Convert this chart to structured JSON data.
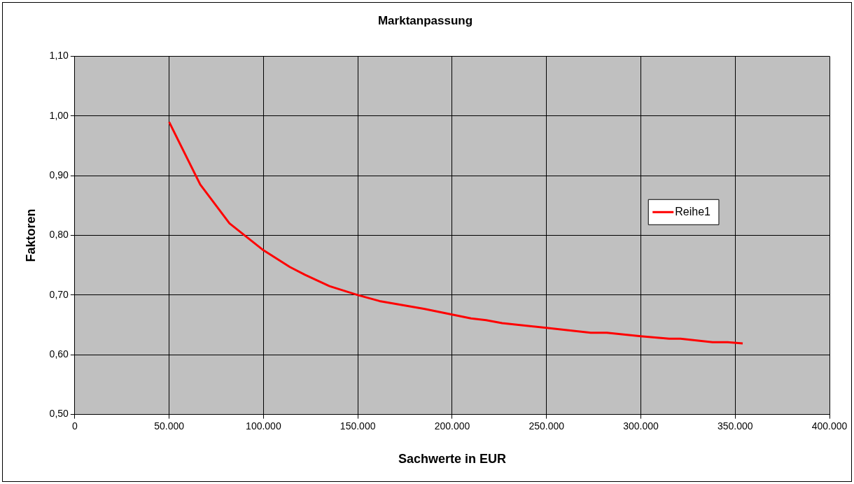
{
  "chart_data": {
    "type": "line",
    "title": "Marktanpassung",
    "xlabel": "Sachwerte in EUR",
    "ylabel": "Faktoren",
    "x": [
      50000,
      66500,
      82000,
      100000,
      114000,
      122000,
      135000,
      150000,
      161500,
      185000,
      210000,
      218000,
      226500,
      250000,
      273500,
      282000,
      300000,
      315000,
      321000,
      338000,
      346000,
      354000
    ],
    "series": [
      {
        "name": "Reihe1",
        "color": "#ff0000",
        "values": [
          0.99,
          0.885,
          0.82,
          0.775,
          0.747,
          0.734,
          0.715,
          0.7,
          0.69,
          0.677,
          0.661,
          0.658,
          0.653,
          0.645,
          0.637,
          0.637,
          0.631,
          0.627,
          0.627,
          0.621,
          0.621,
          0.619
        ]
      }
    ],
    "xlim": [
      0,
      400000
    ],
    "xticks": [
      {
        "value": 0,
        "label": "0"
      },
      {
        "value": 50000,
        "label": "50.000"
      },
      {
        "value": 100000,
        "label": "100.000"
      },
      {
        "value": 150000,
        "label": "150.000"
      },
      {
        "value": 200000,
        "label": "200.000"
      },
      {
        "value": 250000,
        "label": "250.000"
      },
      {
        "value": 300000,
        "label": "300.000"
      },
      {
        "value": 350000,
        "label": "350.000"
      },
      {
        "value": 400000,
        "label": "400.000"
      }
    ],
    "ylim": [
      0.5,
      1.1
    ],
    "yticks": [
      {
        "value": 0.5,
        "label": "0,50"
      },
      {
        "value": 0.6,
        "label": "0,60"
      },
      {
        "value": 0.7,
        "label": "0,70"
      },
      {
        "value": 0.8,
        "label": "0,80"
      },
      {
        "value": 0.9,
        "label": "0,90"
      },
      {
        "value": 1.0,
        "label": "1,00"
      },
      {
        "value": 1.1,
        "label": "1,10"
      }
    ],
    "grid": true,
    "legend": "right",
    "marker": "none",
    "line_style": "solid"
  }
}
